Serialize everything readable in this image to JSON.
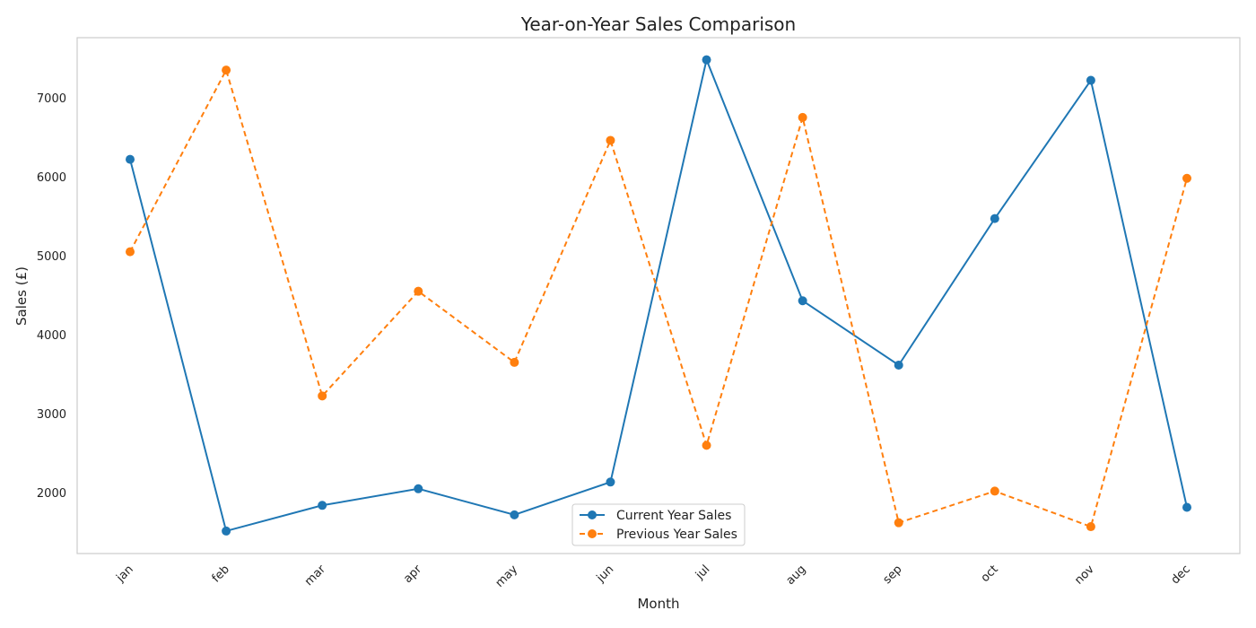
{
  "chart_data": {
    "type": "line",
    "title": "Year-on-Year Sales Comparison",
    "xlabel": "Month",
    "ylabel": "Sales (£)",
    "categories": [
      "jan",
      "feb",
      "mar",
      "apr",
      "may",
      "jun",
      "jul",
      "aug",
      "sep",
      "oct",
      "nov",
      "dec"
    ],
    "y_ticks": [
      2000,
      3000,
      4000,
      5000,
      6000,
      7000
    ],
    "ylim": [
      1230,
      7760
    ],
    "grid": false,
    "legend_position": "bottom-center",
    "series": [
      {
        "name": "Current Year Sales",
        "color": "#1f77b4",
        "style": "solid",
        "marker": "circle",
        "values": [
          6220,
          1515,
          1840,
          2050,
          1720,
          2135,
          7480,
          4430,
          3615,
          5470,
          7220,
          1815
        ]
      },
      {
        "name": "Previous Year Sales",
        "color": "#ff7f0e",
        "style": "dashed",
        "marker": "circle",
        "values": [
          5050,
          7350,
          3225,
          4550,
          3650,
          6460,
          2600,
          6750,
          1620,
          2020,
          1570,
          5980
        ]
      }
    ]
  }
}
